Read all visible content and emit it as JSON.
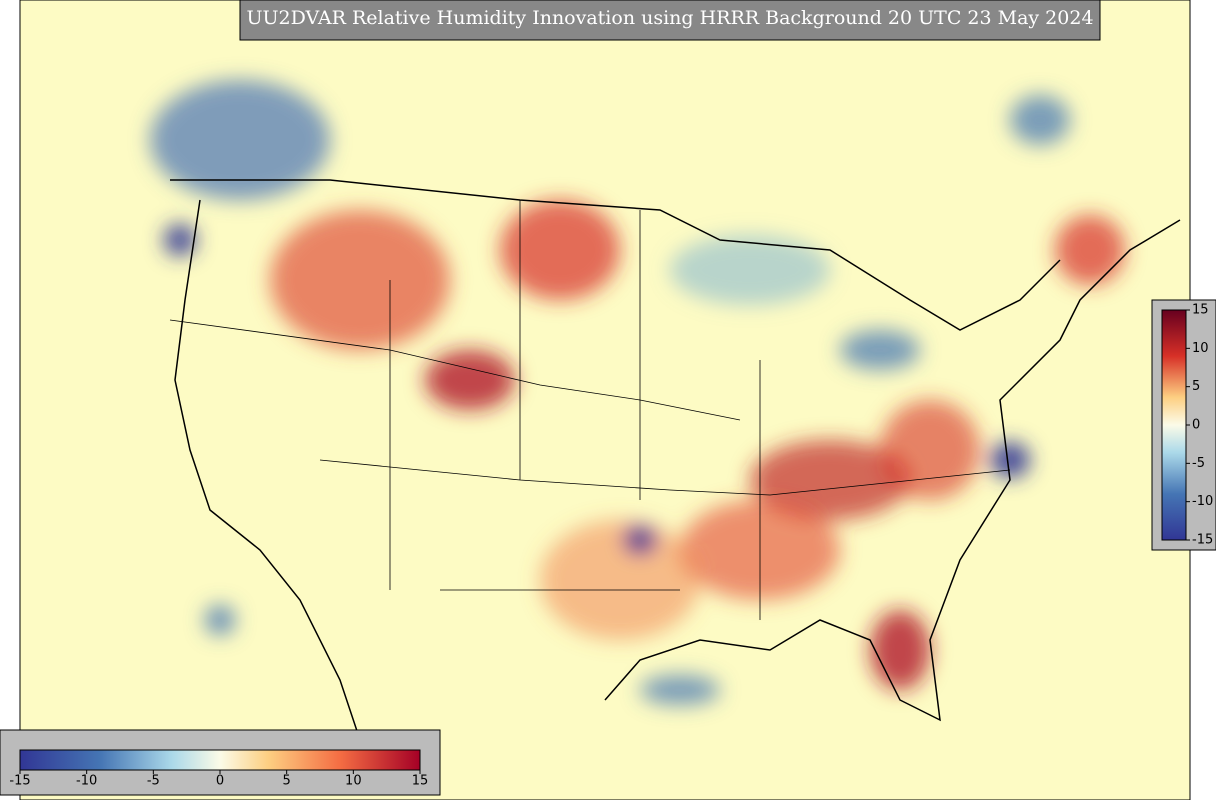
{
  "title": "UU2DVAR Relative Humidity Innovation using HRRR Background 20 UTC 23 May 2024",
  "colorbars": [
    {
      "orientation": "horizontal",
      "range": [
        -15,
        15
      ],
      "ticks": [
        -15,
        -10,
        -5,
        0,
        5,
        10,
        15
      ]
    },
    {
      "orientation": "vertical",
      "range": [
        -15,
        15
      ],
      "ticks": [
        -15,
        -10,
        -5,
        0,
        5,
        10,
        15
      ]
    }
  ]
}
